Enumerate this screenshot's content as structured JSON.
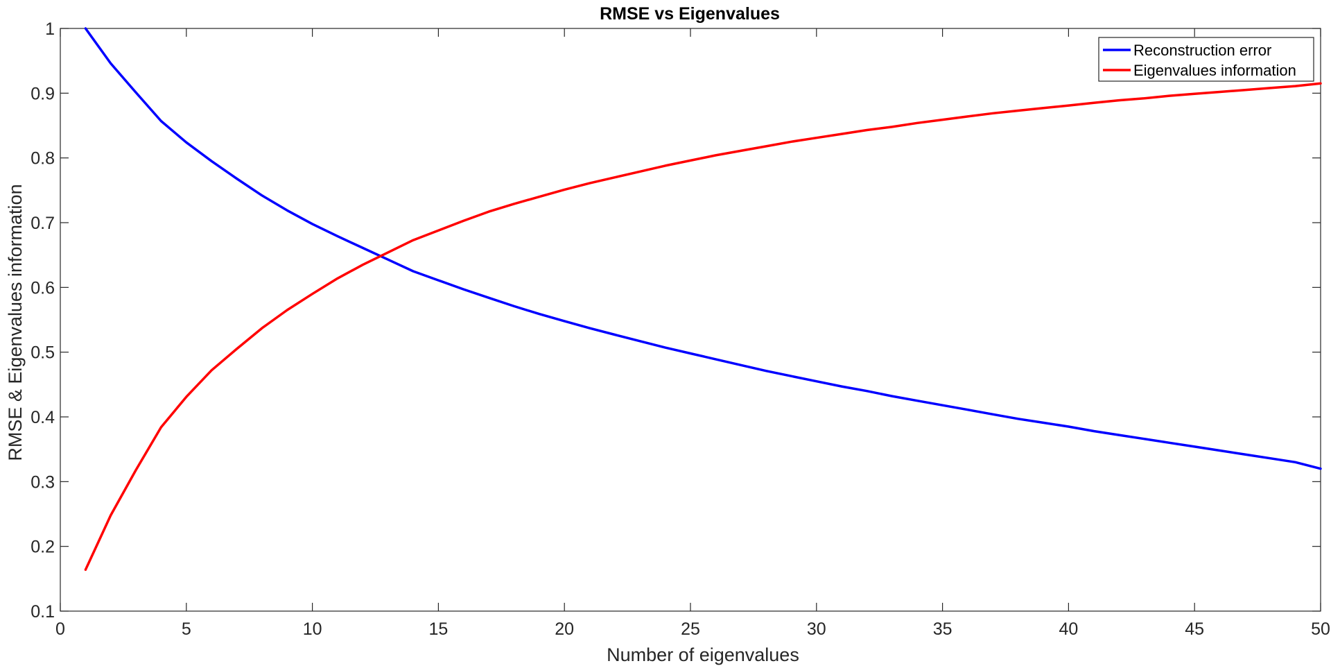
{
  "chart_data": {
    "type": "line",
    "title": "RMSE vs Eigenvalues",
    "xlabel": "Number of eigenvalues",
    "ylabel": "RMSE & Eigenvalues information",
    "xlim": [
      0,
      50
    ],
    "ylim": [
      0.1,
      1
    ],
    "xticks": [
      0,
      5,
      10,
      15,
      20,
      25,
      30,
      35,
      40,
      45,
      50
    ],
    "yticks": [
      0.1,
      0.2,
      0.3,
      0.4,
      0.5,
      0.6,
      0.7,
      0.8,
      0.9,
      1
    ],
    "xtick_labels": [
      "0",
      "5",
      "10",
      "15",
      "20",
      "25",
      "30",
      "35",
      "40",
      "45",
      "50"
    ],
    "ytick_labels": [
      "0.1",
      "0.2",
      "0.3",
      "0.4",
      "0.5",
      "0.6",
      "0.7",
      "0.8",
      "0.9",
      "1"
    ],
    "grid": false,
    "legend_position": "top-right",
    "x": [
      1,
      2,
      3,
      4,
      5,
      6,
      7,
      8,
      9,
      10,
      11,
      12,
      13,
      14,
      15,
      16,
      17,
      18,
      19,
      20,
      21,
      22,
      23,
      24,
      25,
      26,
      27,
      28,
      29,
      30,
      31,
      32,
      33,
      34,
      35,
      36,
      37,
      38,
      39,
      40,
      41,
      42,
      43,
      44,
      45,
      46,
      47,
      48,
      49,
      50
    ],
    "series": [
      {
        "name": "Reconstruction error",
        "color": "#0000ff",
        "values": [
          1.0,
          0.946,
          0.901,
          0.857,
          0.824,
          0.795,
          0.768,
          0.742,
          0.719,
          0.698,
          0.679,
          0.661,
          0.643,
          0.625,
          0.611,
          0.597,
          0.584,
          0.571,
          0.559,
          0.548,
          0.537,
          0.527,
          0.517,
          0.507,
          0.498,
          0.489,
          0.48,
          0.471,
          0.463,
          0.455,
          0.447,
          0.44,
          0.432,
          0.425,
          0.418,
          0.411,
          0.404,
          0.397,
          0.391,
          0.385,
          0.378,
          0.372,
          0.366,
          0.36,
          0.354,
          0.348,
          0.342,
          0.336,
          0.33,
          0.32
        ]
      },
      {
        "name": "Eigenvalues information",
        "color": "#ff0000",
        "values": [
          0.164,
          0.248,
          0.318,
          0.384,
          0.431,
          0.472,
          0.505,
          0.537,
          0.565,
          0.59,
          0.614,
          0.635,
          0.654,
          0.673,
          0.688,
          0.703,
          0.717,
          0.729,
          0.74,
          0.751,
          0.761,
          0.77,
          0.779,
          0.788,
          0.796,
          0.804,
          0.811,
          0.818,
          0.825,
          0.831,
          0.837,
          0.843,
          0.848,
          0.854,
          0.859,
          0.864,
          0.869,
          0.873,
          0.877,
          0.881,
          0.885,
          0.889,
          0.892,
          0.896,
          0.899,
          0.902,
          0.905,
          0.908,
          0.911,
          0.915
        ]
      }
    ]
  }
}
